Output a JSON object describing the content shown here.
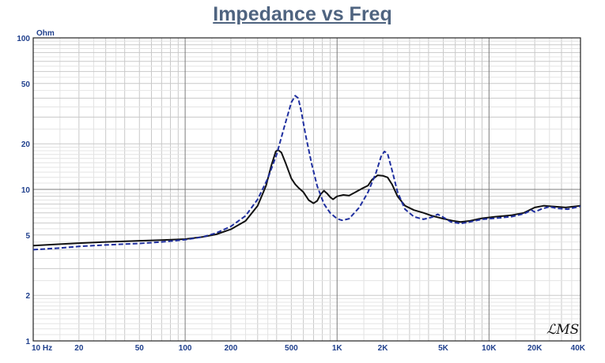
{
  "chart_data": {
    "type": "line",
    "title": "Impedance vs Freq",
    "ylabel": "Ohm",
    "xscale": "log",
    "yscale": "log",
    "xlim": [
      10,
      40000
    ],
    "ylim": [
      1,
      100
    ],
    "x_ticks": [
      {
        "value": 10,
        "label": "10  Hz"
      },
      {
        "value": 20,
        "label": "20"
      },
      {
        "value": 50,
        "label": "50"
      },
      {
        "value": 100,
        "label": "100"
      },
      {
        "value": 200,
        "label": "200"
      },
      {
        "value": 500,
        "label": "500"
      },
      {
        "value": 1000,
        "label": "1K"
      },
      {
        "value": 2000,
        "label": "2K"
      },
      {
        "value": 5000,
        "label": "5K"
      },
      {
        "value": 10000,
        "label": "10K"
      },
      {
        "value": 20000,
        "label": "20K"
      },
      {
        "value": 40000,
        "label": "40K"
      }
    ],
    "y_ticks": [
      {
        "value": 1,
        "label": "1"
      },
      {
        "value": 2,
        "label": "2"
      },
      {
        "value": 5,
        "label": "5"
      },
      {
        "value": 10,
        "label": "10"
      },
      {
        "value": 20,
        "label": "20"
      },
      {
        "value": 50,
        "label": "50"
      },
      {
        "value": 100,
        "label": "100"
      }
    ],
    "grid": true,
    "series": [
      {
        "color": "#111111",
        "points": [
          [
            10,
            4.25
          ],
          [
            15,
            4.35
          ],
          [
            20,
            4.42
          ],
          [
            30,
            4.5
          ],
          [
            50,
            4.58
          ],
          [
            70,
            4.63
          ],
          [
            100,
            4.7
          ],
          [
            130,
            4.85
          ],
          [
            160,
            5.05
          ],
          [
            200,
            5.45
          ],
          [
            250,
            6.2
          ],
          [
            300,
            7.8
          ],
          [
            340,
            10.5
          ],
          [
            370,
            14.5
          ],
          [
            395,
            17.8
          ],
          [
            410,
            18.2
          ],
          [
            430,
            17.5
          ],
          [
            460,
            14.8
          ],
          [
            500,
            11.8
          ],
          [
            530,
            10.8
          ],
          [
            560,
            10.2
          ],
          [
            600,
            9.6
          ],
          [
            650,
            8.5
          ],
          [
            700,
            8.1
          ],
          [
            740,
            8.4
          ],
          [
            780,
            9.3
          ],
          [
            820,
            9.8
          ],
          [
            860,
            9.4
          ],
          [
            900,
            8.9
          ],
          [
            940,
            8.6
          ],
          [
            1000,
            9.0
          ],
          [
            1100,
            9.2
          ],
          [
            1200,
            9.1
          ],
          [
            1300,
            9.5
          ],
          [
            1450,
            10.1
          ],
          [
            1600,
            10.6
          ],
          [
            1700,
            11.6
          ],
          [
            1850,
            12.4
          ],
          [
            2000,
            12.3
          ],
          [
            2150,
            12.0
          ],
          [
            2300,
            10.8
          ],
          [
            2500,
            9.0
          ],
          [
            2800,
            7.8
          ],
          [
            3200,
            7.3
          ],
          [
            3700,
            7.0
          ],
          [
            4200,
            6.7
          ],
          [
            5000,
            6.4
          ],
          [
            5800,
            6.2
          ],
          [
            6500,
            6.1
          ],
          [
            7500,
            6.2
          ],
          [
            9000,
            6.45
          ],
          [
            11000,
            6.6
          ],
          [
            14000,
            6.75
          ],
          [
            17000,
            7.0
          ],
          [
            20000,
            7.6
          ],
          [
            23000,
            7.8
          ],
          [
            27000,
            7.7
          ],
          [
            32000,
            7.6
          ],
          [
            36000,
            7.7
          ],
          [
            40000,
            7.8
          ]
        ]
      },
      {
        "color": "#1f2f9f",
        "dashed": true,
        "points": [
          [
            10,
            4.0
          ],
          [
            15,
            4.1
          ],
          [
            20,
            4.2
          ],
          [
            30,
            4.3
          ],
          [
            50,
            4.4
          ],
          [
            70,
            4.5
          ],
          [
            100,
            4.65
          ],
          [
            130,
            4.85
          ],
          [
            160,
            5.15
          ],
          [
            200,
            5.7
          ],
          [
            250,
            6.7
          ],
          [
            300,
            8.6
          ],
          [
            350,
            11.8
          ],
          [
            400,
            17.0
          ],
          [
            450,
            26.0
          ],
          [
            500,
            37.5
          ],
          [
            530,
            41.5
          ],
          [
            555,
            40.0
          ],
          [
            580,
            33.0
          ],
          [
            620,
            23.0
          ],
          [
            680,
            14.8
          ],
          [
            740,
            10.5
          ],
          [
            820,
            8.0
          ],
          [
            900,
            7.0
          ],
          [
            1000,
            6.4
          ],
          [
            1080,
            6.25
          ],
          [
            1200,
            6.4
          ],
          [
            1400,
            7.6
          ],
          [
            1600,
            9.6
          ],
          [
            1800,
            12.8
          ],
          [
            1950,
            16.5
          ],
          [
            2050,
            17.8
          ],
          [
            2150,
            17.2
          ],
          [
            2300,
            13.4
          ],
          [
            2500,
            9.6
          ],
          [
            2800,
            7.4
          ],
          [
            3200,
            6.6
          ],
          [
            3700,
            6.35
          ],
          [
            4200,
            6.55
          ],
          [
            4600,
            6.85
          ],
          [
            5000,
            6.55
          ],
          [
            5600,
            6.1
          ],
          [
            6500,
            5.95
          ],
          [
            7500,
            6.1
          ],
          [
            9000,
            6.35
          ],
          [
            11000,
            6.45
          ],
          [
            14000,
            6.6
          ],
          [
            17000,
            6.9
          ],
          [
            19000,
            7.3
          ],
          [
            20000,
            7.1
          ],
          [
            22000,
            7.4
          ],
          [
            25000,
            7.7
          ],
          [
            28000,
            7.5
          ],
          [
            33000,
            7.4
          ],
          [
            37000,
            7.6
          ],
          [
            40000,
            7.75
          ]
        ]
      }
    ]
  }
}
